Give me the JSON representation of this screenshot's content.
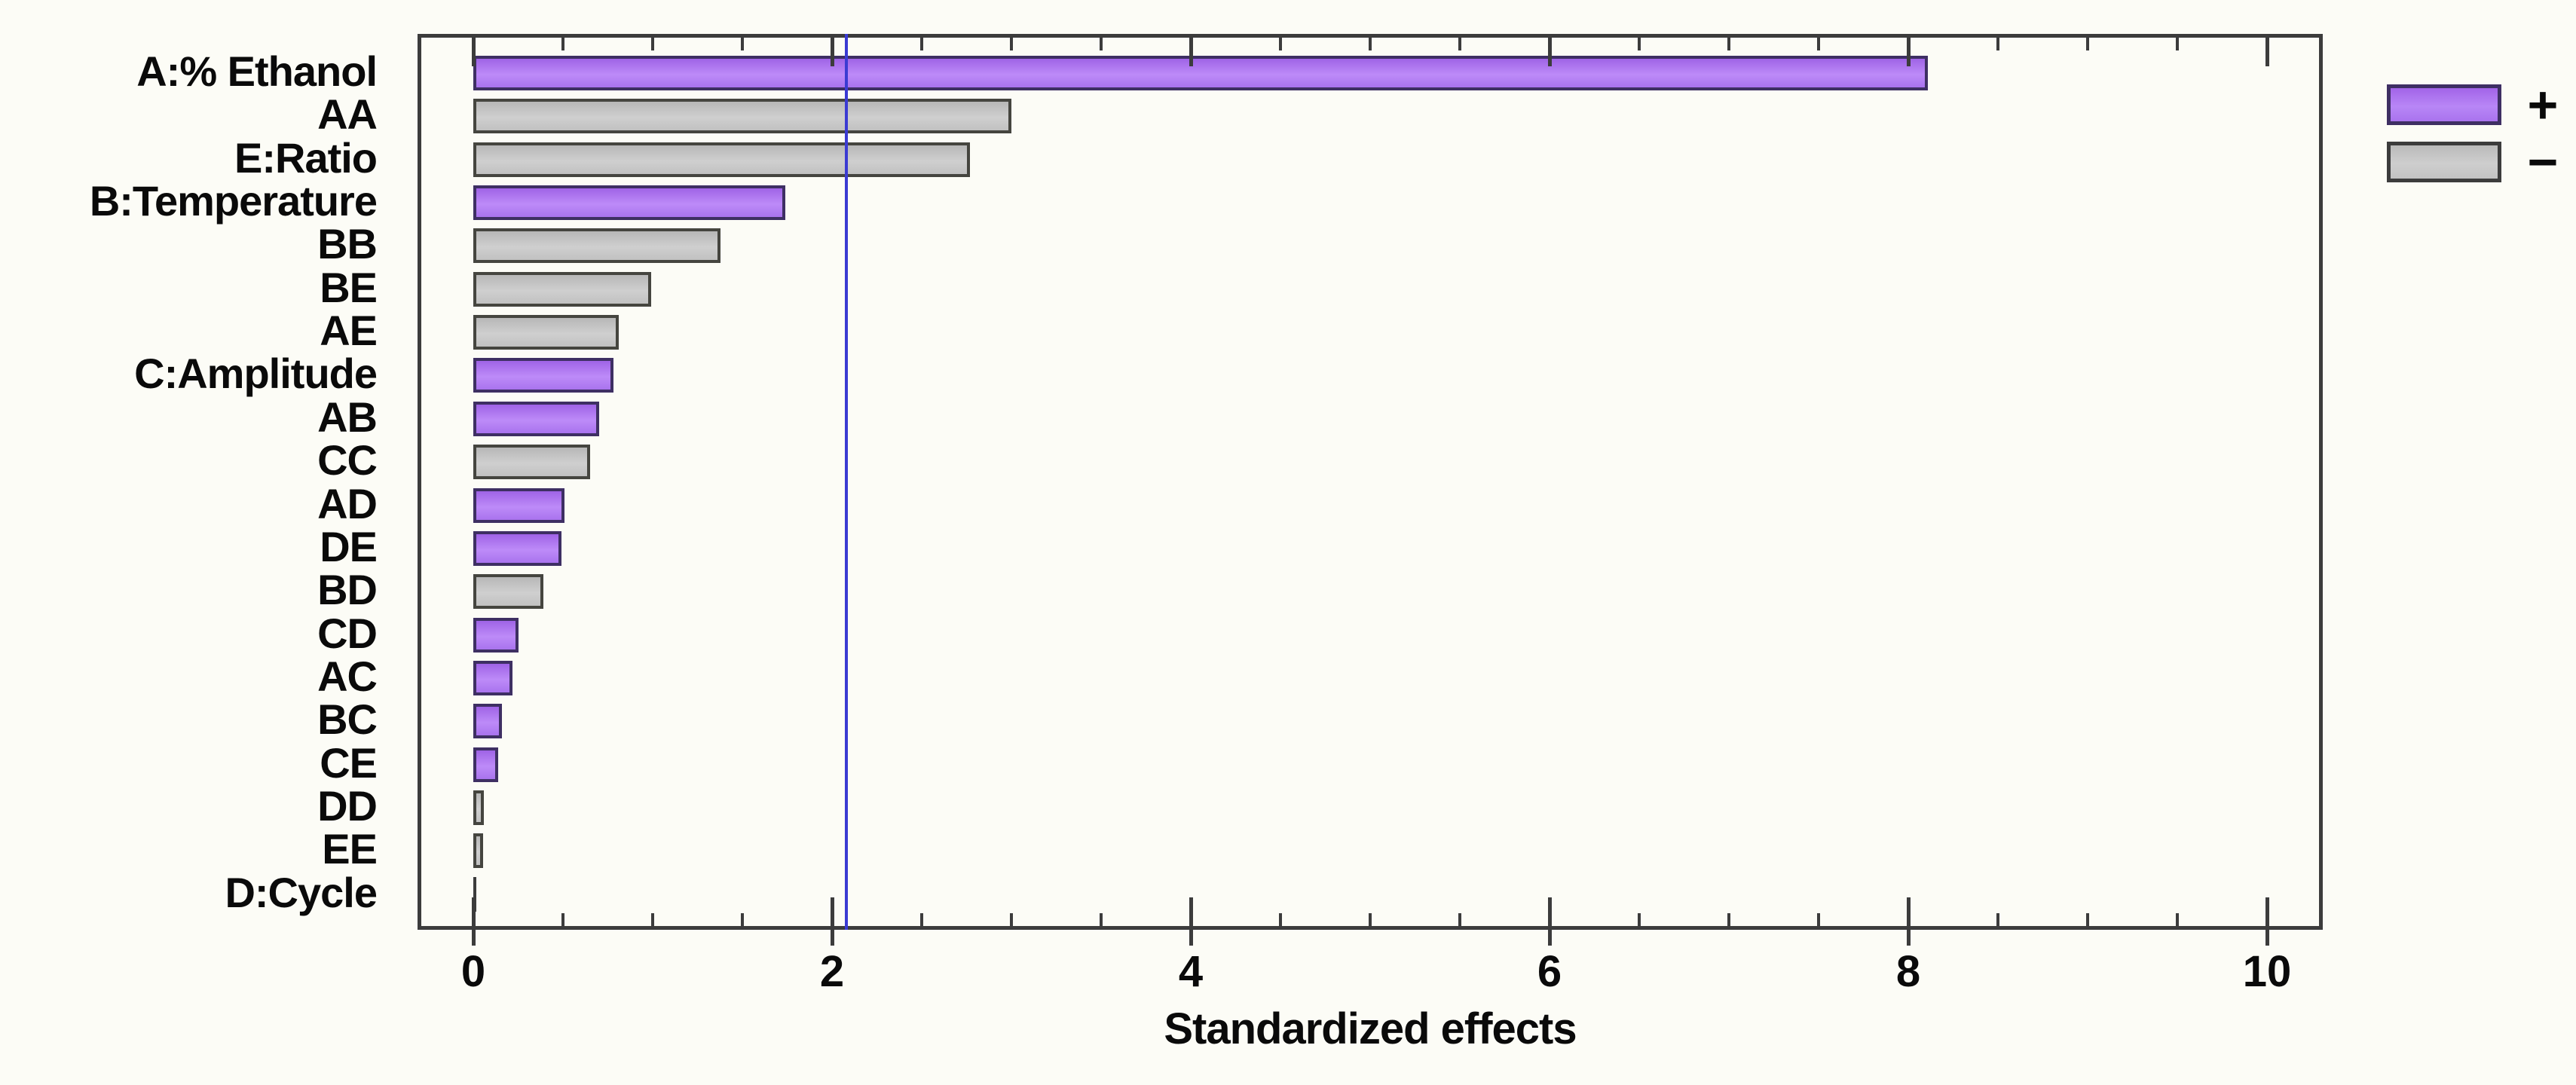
{
  "chart_data": {
    "type": "bar",
    "orientation": "horizontal",
    "title": "",
    "xlabel": "Standardized effects",
    "x_ticks": [
      0,
      2,
      4,
      6,
      8,
      10
    ],
    "x_minor_step": 0.5,
    "xlim": [
      -0.29,
      10.3
    ],
    "grid": false,
    "legend_position": "top-right",
    "reference_line": {
      "value": 2.08
    },
    "legend": [
      {
        "label": "+",
        "sign": "plus"
      },
      {
        "label": "−",
        "sign": "minus"
      }
    ],
    "categories": [
      "A:% Ethanol",
      "AA",
      "E:Ratio",
      "B:Temperature",
      "BB",
      "BE",
      "AE",
      "C:Amplitude",
      "AB",
      "CC",
      "AD",
      "DE",
      "BD",
      "CD",
      "AC",
      "BC",
      "CE",
      "DD",
      "EE",
      "D:Cycle"
    ],
    "values": [
      8.11,
      3.0,
      2.77,
      1.74,
      1.38,
      0.99,
      0.81,
      0.78,
      0.7,
      0.65,
      0.51,
      0.49,
      0.39,
      0.25,
      0.22,
      0.16,
      0.14,
      0.06,
      0.055,
      0.01
    ],
    "signs": [
      "+",
      "-",
      "-",
      "+",
      "-",
      "-",
      "-",
      "+",
      "+",
      "-",
      "+",
      "+",
      "-",
      "+",
      "+",
      "+",
      "+",
      "-",
      "-",
      "-"
    ],
    "colors": {
      "plus_fill": "#b27cf2",
      "minus_fill": "#c6c6c6",
      "plus_border": "#3e2f63",
      "minus_border": "#45453f",
      "axis": "#3c3c3c",
      "reference_line": "#3b3bd2",
      "text": "#0a0a0a",
      "background": "#fcfcf6"
    }
  }
}
